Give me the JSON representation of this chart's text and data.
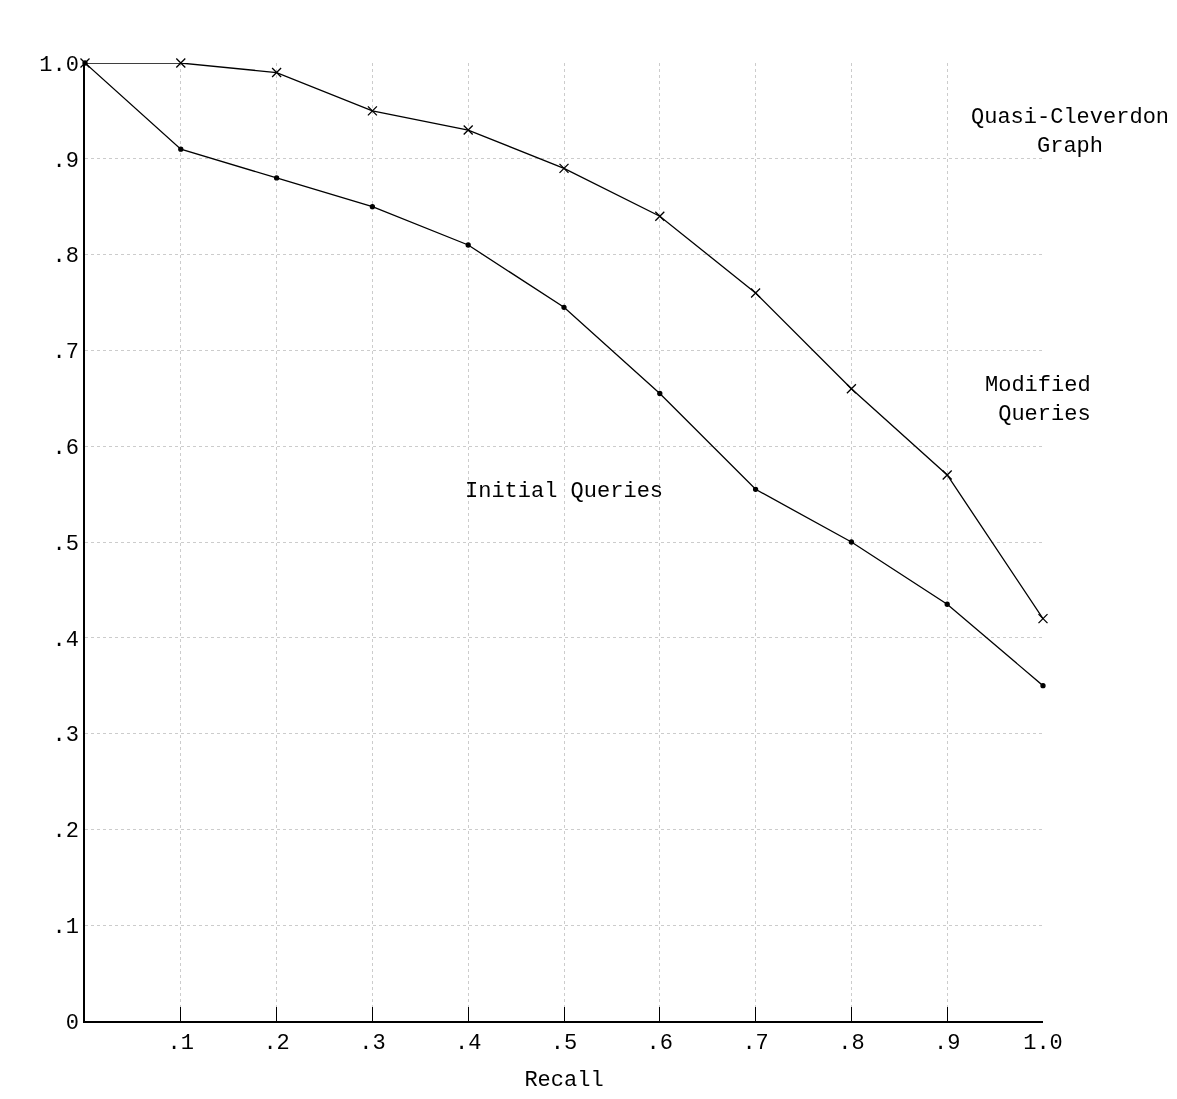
{
  "chart_data": {
    "type": "line",
    "title": "Quasi-Cleverdon Graph",
    "xlabel": "Recall",
    "x": [
      0,
      0.1,
      0.2,
      0.3,
      0.4,
      0.5,
      0.6,
      0.7,
      0.8,
      0.9,
      1.0
    ],
    "series": [
      {
        "name": "Modified Queries",
        "color": "#000000",
        "marker": "cross",
        "values": [
          1.0,
          1.0,
          0.99,
          0.95,
          0.93,
          0.89,
          0.84,
          0.76,
          0.66,
          0.57,
          0.42
        ]
      },
      {
        "name": "Initial Queries",
        "color": "#000000",
        "marker": "circle",
        "values": [
          1.0,
          0.91,
          0.88,
          0.85,
          0.81,
          0.745,
          0.655,
          0.555,
          0.5,
          0.435,
          0.35
        ]
      }
    ],
    "xlim": [
      0,
      1.0
    ],
    "ylim": [
      0,
      1.0
    ],
    "xticks": [
      {
        "value": 0.1,
        "label": ".1"
      },
      {
        "value": 0.2,
        "label": ".2"
      },
      {
        "value": 0.3,
        "label": ".3"
      },
      {
        "value": 0.4,
        "label": ".4"
      },
      {
        "value": 0.5,
        "label": ".5"
      },
      {
        "value": 0.6,
        "label": ".6"
      },
      {
        "value": 0.7,
        "label": ".7"
      },
      {
        "value": 0.8,
        "label": ".8"
      },
      {
        "value": 0.9,
        "label": ".9"
      },
      {
        "value": 1.0,
        "label": "1.0"
      }
    ],
    "yticks": [
      0,
      {
        "value": 0.1,
        "label": ".1"
      },
      {
        "value": 0.2,
        "label": ".2"
      },
      {
        "value": 0.3,
        "label": ".3"
      },
      {
        "value": 0.4,
        "label": ".4"
      },
      {
        "value": 0.5,
        "label": ".5"
      },
      {
        "value": 0.6,
        "label": ".6"
      },
      {
        "value": 0.7,
        "label": ".7"
      },
      {
        "value": 0.8,
        "label": ".8"
      },
      {
        "value": 0.9,
        "label": ".9"
      },
      {
        "value": 1.0,
        "label": "1.0"
      }
    ],
    "grid": true,
    "legend": false,
    "line_style": "solid"
  }
}
